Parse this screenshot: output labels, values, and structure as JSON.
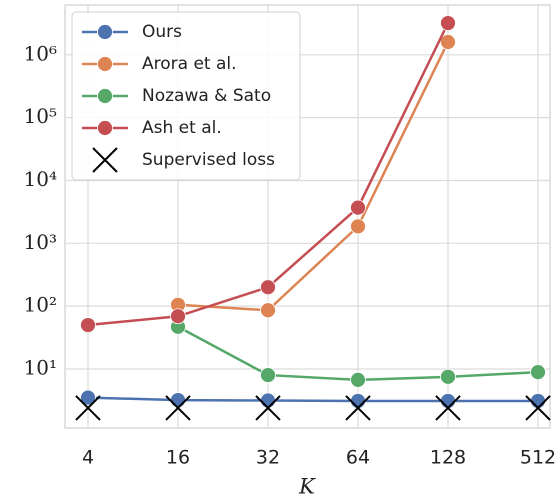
{
  "chart_data": {
    "type": "line",
    "xlabel": "K",
    "categories": [
      "4",
      "16",
      "32",
      "64",
      "128",
      "512"
    ],
    "yscale": "log",
    "ylim": [
      1.15,
      6200000
    ],
    "yticks": [
      {
        "value": 10,
        "label": "10¹"
      },
      {
        "value": 100,
        "label": "10²"
      },
      {
        "value": 1000,
        "label": "10³"
      },
      {
        "value": 10000,
        "label": "10⁴"
      },
      {
        "value": 100000,
        "label": "10⁵"
      },
      {
        "value": 1000000,
        "label": "10⁶"
      }
    ],
    "grid": true,
    "legend": "upper left",
    "series": [
      {
        "name": "Ours",
        "color": "#4c72b0",
        "marker": "o",
        "values": [
          3.5,
          3.2,
          3.15,
          3.1,
          3.1,
          3.1
        ]
      },
      {
        "name": "Arora et al.",
        "color": "#dd8452",
        "marker": "o",
        "values": [
          null,
          105,
          86,
          1860,
          1600000,
          null
        ]
      },
      {
        "name": "Nozawa & Sato",
        "color": "#55a868",
        "marker": "o",
        "values": [
          null,
          47,
          8.0,
          6.7,
          7.5,
          8.9
        ]
      },
      {
        "name": "Ash et al.",
        "color": "#c44e52",
        "marker": "o",
        "values": [
          50,
          69,
          200,
          3700,
          3200000,
          null
        ]
      },
      {
        "name": "Supervised loss",
        "color": "#000000",
        "marker": "x",
        "line": false,
        "values": [
          2.4,
          2.4,
          2.4,
          2.4,
          2.4,
          2.4
        ]
      }
    ]
  }
}
